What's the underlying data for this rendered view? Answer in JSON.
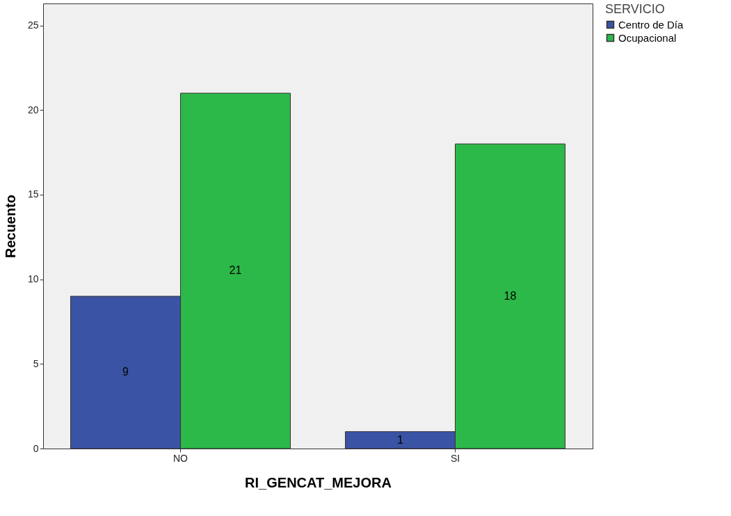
{
  "chart_data": {
    "type": "bar",
    "xlabel": "RI_GENCAT_MEJORA",
    "ylabel": "Recuento",
    "legend_title": "SERVICIO",
    "categories": [
      "NO",
      "SI"
    ],
    "series": [
      {
        "name": "Centro de Día",
        "color": "#3a53a4",
        "values": [
          9,
          1
        ]
      },
      {
        "name": "Ocupacional",
        "color": "#2db84a",
        "values": [
          21,
          18
        ]
      }
    ],
    "ylim": [
      0,
      26.3
    ],
    "yticks": [
      0,
      5,
      10,
      15,
      20,
      25
    ],
    "data_labels": true,
    "grid": false,
    "legend": "top right"
  }
}
